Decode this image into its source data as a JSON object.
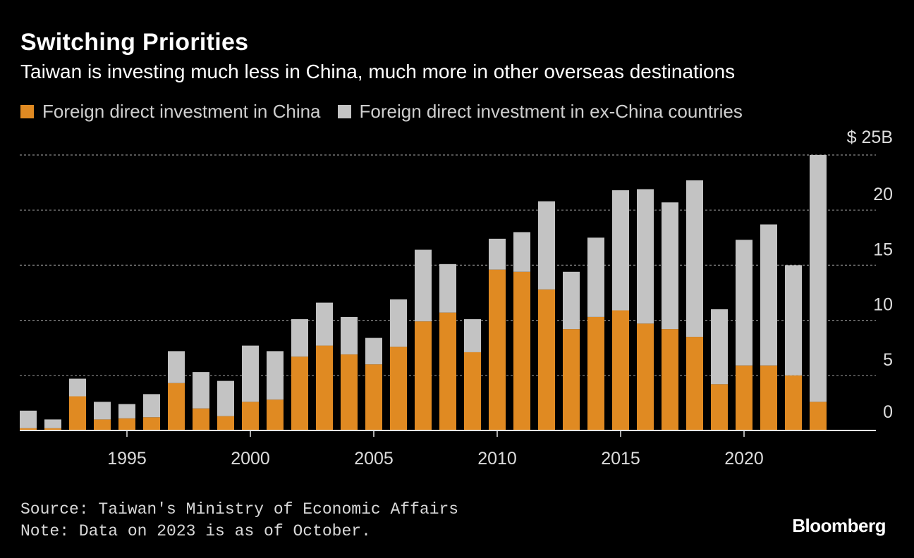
{
  "title": "Switching Priorities",
  "subtitle": "Taiwan is investing much less in China, much more in other overseas destinations",
  "legend": [
    {
      "label": "Foreign direct investment in China",
      "color": "#e08a22"
    },
    {
      "label": "Foreign direct investment in ex-China countries",
      "color": "#c3c3c3"
    }
  ],
  "source": "Source: Taiwan's Ministry of Economic Affairs",
  "note": "Note: Data on 2023 is as of October.",
  "brand": "Bloomberg",
  "colors": {
    "background": "#000000",
    "china": "#e08a22",
    "ex_china": "#c3c3c3",
    "grid": "#8a8a8a"
  },
  "chart_data": {
    "type": "bar",
    "stacked": true,
    "x": [
      1991,
      1992,
      1993,
      1994,
      1995,
      1996,
      1997,
      1998,
      1999,
      2000,
      2001,
      2002,
      2003,
      2004,
      2005,
      2006,
      2007,
      2008,
      2009,
      2010,
      2011,
      2012,
      2013,
      2014,
      2015,
      2016,
      2017,
      2018,
      2019,
      2020,
      2021,
      2022,
      2023
    ],
    "series": [
      {
        "name": "Foreign direct investment in China",
        "values": [
          0.2,
          0.2,
          3.1,
          1.0,
          1.1,
          1.2,
          4.3,
          2.0,
          1.3,
          2.6,
          2.8,
          6.7,
          7.7,
          6.9,
          6.0,
          7.6,
          9.9,
          10.7,
          7.1,
          14.6,
          14.4,
          12.8,
          9.2,
          10.3,
          10.9,
          9.7,
          9.2,
          8.5,
          4.2,
          5.9,
          5.9,
          5.0,
          2.6
        ],
        "color": "#e08a22"
      },
      {
        "name": "Foreign direct investment in ex-China countries",
        "values": [
          1.6,
          0.8,
          1.6,
          1.6,
          1.3,
          2.1,
          2.9,
          3.3,
          3.2,
          5.1,
          4.4,
          3.4,
          3.9,
          3.4,
          2.4,
          4.3,
          6.5,
          4.4,
          3.0,
          2.8,
          3.6,
          8.0,
          5.2,
          7.2,
          10.9,
          12.2,
          11.5,
          14.2,
          6.8,
          11.4,
          12.8,
          10.0,
          22.4
        ],
        "color": "#c3c3c3"
      }
    ],
    "ylim": [
      0,
      25
    ],
    "y_ticks": [
      {
        "value": 25,
        "label": "$ 25B"
      },
      {
        "value": 20,
        "label": "20"
      },
      {
        "value": 15,
        "label": "15"
      },
      {
        "value": 10,
        "label": "10"
      },
      {
        "value": 5,
        "label": "5"
      },
      {
        "value": 0,
        "label": "0"
      }
    ],
    "x_ticks": [
      {
        "value": 1995,
        "label": "1995"
      },
      {
        "value": 2000,
        "label": "2000"
      },
      {
        "value": 2005,
        "label": "2005"
      },
      {
        "value": 2010,
        "label": "2010"
      },
      {
        "value": 2015,
        "label": "2015"
      },
      {
        "value": 2020,
        "label": "2020"
      }
    ],
    "grid": true,
    "y_axis_position": "right",
    "legend_position": "top-left"
  }
}
